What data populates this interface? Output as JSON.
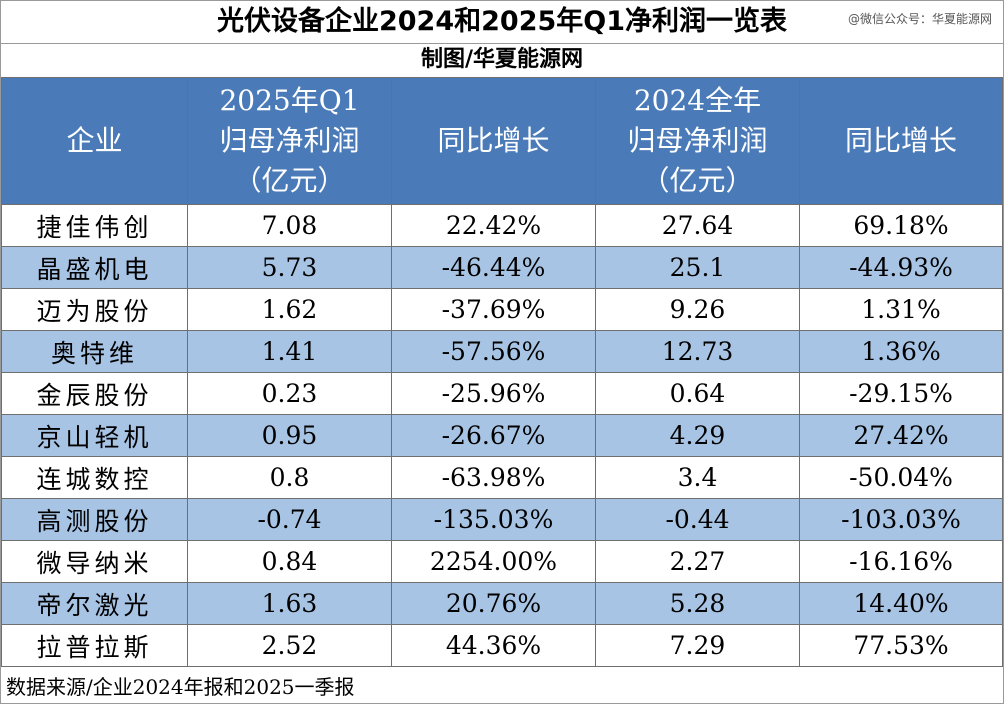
{
  "title": "光伏设备企业2024和2025年Q1净利润一览表",
  "watermark": "@微信公众号：华夏能源网",
  "credit": "制图/华夏能源网",
  "headers": {
    "company": "企业",
    "q1_profit": [
      "2025年Q1",
      "归母净利润",
      "（亿元）"
    ],
    "q1_yoy": "同比增长",
    "fy_profit": [
      "2024全年",
      "归母净利润",
      "（亿元）"
    ],
    "fy_yoy": "同比增长"
  },
  "rows": [
    {
      "company": "捷佳伟创",
      "q1_profit": "7.08",
      "q1_yoy": "22.42%",
      "fy_profit": "27.64",
      "fy_yoy": "69.18%"
    },
    {
      "company": "晶盛机电",
      "q1_profit": "5.73",
      "q1_yoy": "-46.44%",
      "fy_profit": "25.1",
      "fy_yoy": "-44.93%"
    },
    {
      "company": "迈为股份",
      "q1_profit": "1.62",
      "q1_yoy": "-37.69%",
      "fy_profit": "9.26",
      "fy_yoy": "1.31%"
    },
    {
      "company": "奥特维",
      "q1_profit": "1.41",
      "q1_yoy": "-57.56%",
      "fy_profit": "12.73",
      "fy_yoy": "1.36%"
    },
    {
      "company": "金辰股份",
      "q1_profit": "0.23",
      "q1_yoy": "-25.96%",
      "fy_profit": "0.64",
      "fy_yoy": "-29.15%"
    },
    {
      "company": "京山轻机",
      "q1_profit": "0.95",
      "q1_yoy": "-26.67%",
      "fy_profit": "4.29",
      "fy_yoy": "27.42%"
    },
    {
      "company": "连城数控",
      "q1_profit": "0.8",
      "q1_yoy": "-63.98%",
      "fy_profit": "3.4",
      "fy_yoy": "-50.04%"
    },
    {
      "company": "高测股份",
      "q1_profit": "-0.74",
      "q1_yoy": "-135.03%",
      "fy_profit": "-0.44",
      "fy_yoy": "-103.03%"
    },
    {
      "company": "微导纳米",
      "q1_profit": "0.84",
      "q1_yoy": "2254.00%",
      "fy_profit": "2.27",
      "fy_yoy": "-16.16%"
    },
    {
      "company": "帝尔激光",
      "q1_profit": "1.63",
      "q1_yoy": "20.76%",
      "fy_profit": "5.28",
      "fy_yoy": "14.40%"
    },
    {
      "company": "拉普拉斯",
      "q1_profit": "2.52",
      "q1_yoy": "44.36%",
      "fy_profit": "7.29",
      "fy_yoy": "77.53%"
    }
  ],
  "footer": "数据来源/企业2024年报和2025一季报",
  "colors": {
    "header_bg": "#4a7ab8",
    "alt_row_bg": "#a7c4e5",
    "border": "#6f6f6f"
  }
}
